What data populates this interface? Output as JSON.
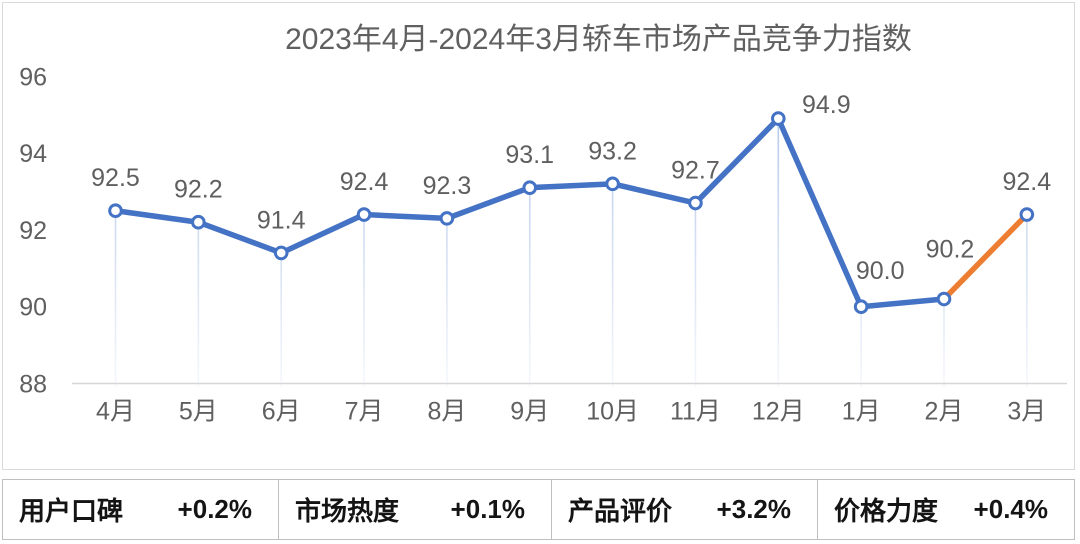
{
  "chart_data": {
    "type": "line",
    "title": "2023年4月-2024年3月轿车市场产品竞争力指数",
    "categories": [
      "4月",
      "5月",
      "6月",
      "7月",
      "8月",
      "9月",
      "10月",
      "11月",
      "12月",
      "1月",
      "2月",
      "3月"
    ],
    "values": [
      92.5,
      92.2,
      91.4,
      92.4,
      92.3,
      93.1,
      93.2,
      92.7,
      94.9,
      90.0,
      90.2,
      92.4
    ],
    "point_labels": [
      "92.5",
      "92.2",
      "91.4",
      "92.4",
      "92.3",
      "93.1",
      "93.2",
      "92.7",
      "94.9",
      "90.0",
      "90.2",
      "92.4"
    ],
    "xlabel": "",
    "ylabel": "",
    "ylim": [
      88,
      96
    ],
    "ytick_step": 2,
    "ytick_labels": [
      "88",
      "90",
      "92",
      "94",
      "96"
    ],
    "grid": "off",
    "legend": "none",
    "highlight_segment": {
      "from_index": 10,
      "to_index": 11
    },
    "colors": {
      "line": "#4472C4",
      "highlight": "#ED7D31",
      "marker_fill": "#FFFFFF",
      "marker_stroke": "#4472C4",
      "drop_line": "#AFC4E8",
      "axis": "#D6D6D6",
      "text": "#5F5F5F"
    },
    "label_offsets": {
      "default": [
        0,
        -33
      ],
      "8": [
        48,
        -14
      ],
      "9": [
        19,
        -36
      ],
      "10": [
        6,
        -50
      ]
    }
  },
  "stats": {
    "items": [
      {
        "label": "用户口碑",
        "value": "+0.2%"
      },
      {
        "label": "市场热度",
        "value": "+0.1%"
      },
      {
        "label": "产品评价",
        "value": "+3.2%"
      },
      {
        "label": "价格力度",
        "value": "+0.4%"
      }
    ]
  }
}
